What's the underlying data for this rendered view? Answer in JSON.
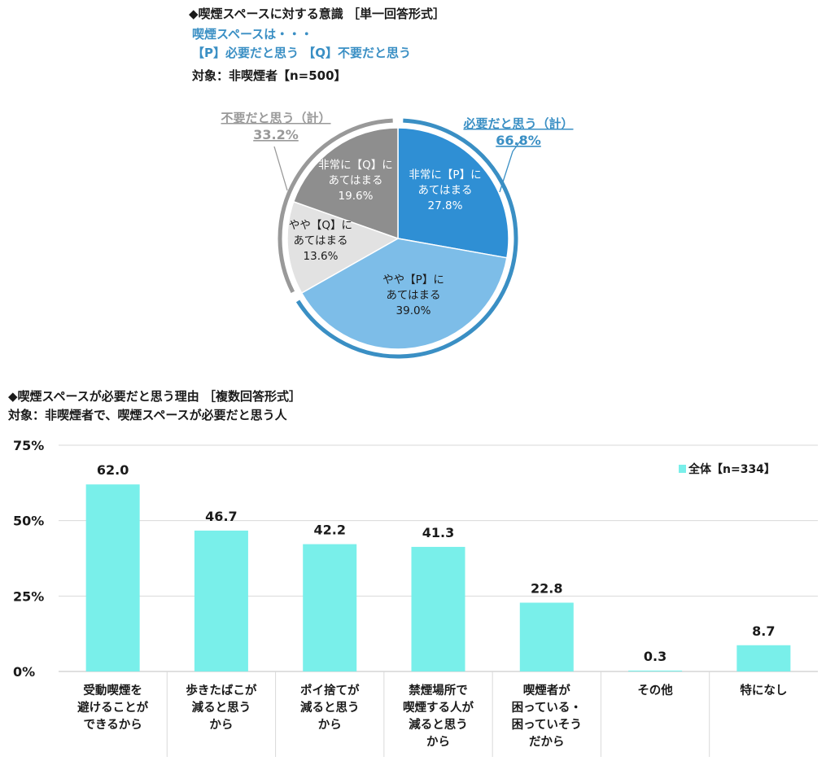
{
  "pie_header": {
    "title": "◆喫煙スペースに対する意識 ［単一回答形式］",
    "question": "喫煙スペースは・・・",
    "options": "【P】必要だと思う 【Q】不要だと思う",
    "target": "対象：非喫煙者【n=500】"
  },
  "bar_header": {
    "title": "◆喫煙スペースが必要だと思う理由 ［複数回答形式］",
    "target": "対象：非喫煙者で、喫煙スペースが必要だと思う人"
  },
  "chart_data": [
    {
      "type": "pie",
      "slices": [
        {
          "label": "非常に【P】にあてはまる",
          "lines": [
            "非常に【P】に",
            "あてはまる",
            "27.8%"
          ],
          "value": 27.8,
          "color": "#2f8fd4"
        },
        {
          "label": "やや【P】にあてはまる",
          "lines": [
            "やや【P】に",
            "あてはまる",
            "39.0%"
          ],
          "value": 39.0,
          "color": "#7dbde8"
        },
        {
          "label": "やや【Q】にあてはまる",
          "lines": [
            "やや【Q】に",
            "あてはまる",
            "13.6%"
          ],
          "value": 13.6,
          "color": "#e2e2e2"
        },
        {
          "label": "非常に【Q】にあてはまる",
          "lines": [
            "非常に【Q】に",
            "あてはまる",
            "19.6%"
          ],
          "value": 19.6,
          "color": "#8e8e8e"
        }
      ],
      "groups": [
        {
          "label": "必要だと思う（計）",
          "value_text": "66.8%",
          "value": 66.8,
          "color": "#3a8fc4"
        },
        {
          "label": "不要だと思う（計）",
          "value_text": "33.2%",
          "value": 33.2,
          "color": "#999999"
        }
      ]
    },
    {
      "type": "bar",
      "categories": [
        [
          "受動喫煙を",
          "避けることが",
          "できるから"
        ],
        [
          "歩きたばこが",
          "減ると思う",
          "から"
        ],
        [
          "ポイ捨てが",
          "減ると思う",
          "から"
        ],
        [
          "禁煙場所で",
          "喫煙する人が",
          "減ると思う",
          "から"
        ],
        [
          "喫煙者が",
          "困っている・",
          "困っていそう",
          "だから"
        ],
        [
          "その他"
        ],
        [
          "特になし"
        ]
      ],
      "series": [
        {
          "name": "全体【n=334】",
          "values": [
            62.0,
            46.7,
            42.2,
            41.3,
            22.8,
            0.3,
            8.7
          ],
          "color": "#79efea"
        }
      ],
      "value_labels": [
        "62.0",
        "46.7",
        "42.2",
        "41.3",
        "22.8",
        "0.3",
        "8.7"
      ],
      "yticks": [
        "0%",
        "25%",
        "50%",
        "75%"
      ],
      "ylim": [
        0,
        75
      ],
      "grid": true,
      "legend": "top-right"
    }
  ]
}
